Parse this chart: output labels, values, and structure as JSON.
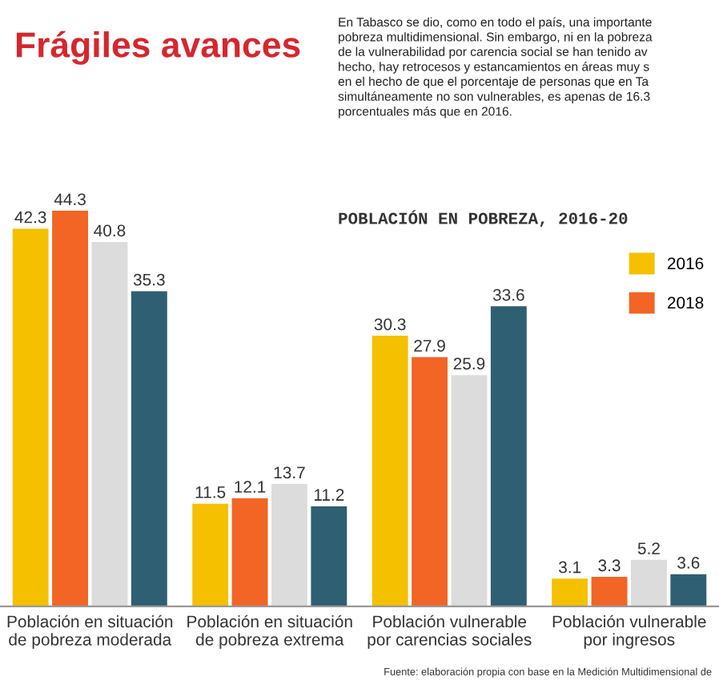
{
  "chart_data": {
    "type": "bar",
    "title": "Frágiles avances",
    "subtitle": "POBLACIÓN EN POBREZA, 2016-20",
    "annotations": [
      "En Tabasco se dio, como en todo el país, una importante\npobreza multidimensional. Sin embargo, ni en la pobreza\nde la vulnerabilidad por carencia social se han tenido av\nhecho, hay retrocesos y estancamientos en áreas muy s\nen el hecho de que el porcentaje de personas que en Ta\nsimultáneamente no son vulnerables, es apenas de 16.3\nporcentuales más que en 2016.",
      "Fuente: elaboración propia con base en la Medición Multidimensional de"
    ],
    "categories": [
      "Población en situación\nde pobreza moderada",
      "Población en situación\nde pobreza extrema",
      "Población vulnerable\npor carencias sociales",
      "Población vulnerable\npor ingresos"
    ],
    "series": [
      {
        "name": "2016",
        "color": "#f5c000",
        "values": [
          42.3,
          11.5,
          30.3,
          3.1
        ]
      },
      {
        "name": "2018",
        "color": "#f26524",
        "values": [
          44.3,
          12.1,
          27.9,
          3.3
        ]
      },
      {
        "color": "#dcdcdc",
        "values": [
          40.8,
          13.7,
          25.9,
          5.2
        ]
      },
      {
        "color": "#2f5f72",
        "values": [
          35.3,
          11.2,
          33.6,
          3.6
        ]
      }
    ],
    "data_labels": true,
    "legend": "right",
    "grid": false
  }
}
